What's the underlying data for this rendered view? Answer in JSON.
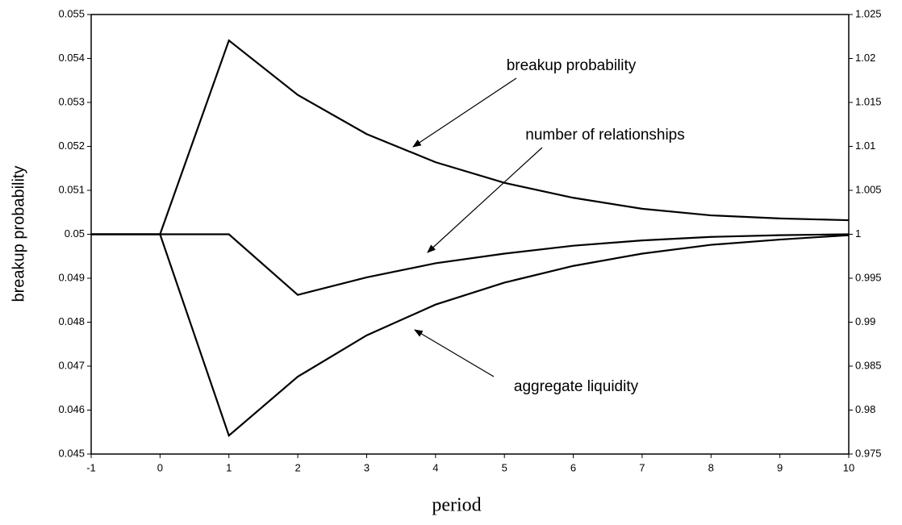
{
  "chart_data": {
    "type": "line",
    "x_label": "period",
    "y_label": "breakup probability",
    "x": [
      -1,
      0,
      1,
      2,
      3,
      4,
      5,
      6,
      7,
      8,
      9,
      10
    ],
    "xlim": [
      -1,
      10
    ],
    "xticks": [
      -1,
      0,
      1,
      2,
      3,
      4,
      5,
      6,
      7,
      8,
      9,
      10
    ],
    "ylim": [
      0.045,
      0.055
    ],
    "yticks": [
      0.045,
      0.046,
      0.047,
      0.048,
      0.049,
      0.05,
      0.051,
      0.052,
      0.053,
      0.054,
      0.055
    ],
    "y2lim": [
      0.975,
      1.025
    ],
    "y2ticks": [
      0.975,
      0.98,
      0.985,
      0.99,
      0.995,
      1,
      1.005,
      1.01,
      1.015,
      1.02,
      1.025
    ],
    "series": [
      {
        "name": "breakup probability",
        "color": "#000000",
        "values": [
          0.05,
          0.05,
          0.05441,
          0.05317,
          0.05228,
          0.05164,
          0.05117,
          0.05083,
          0.05058,
          0.05043,
          0.05036,
          0.05032
        ]
      },
      {
        "name": "number of relationships",
        "color": "#000000",
        "axis": "y2",
        "values": [
          1,
          1,
          1,
          0.9931,
          0.9951,
          0.9967,
          0.9978,
          0.9987,
          0.9993,
          0.9997,
          0.9999,
          1.0
        ]
      },
      {
        "name": "aggregate liquidity",
        "color": "#000000",
        "axis": "y2",
        "values": [
          1,
          1,
          0.9771,
          0.9838,
          0.9885,
          0.992,
          0.9945,
          0.9964,
          0.9978,
          0.9988,
          0.9994,
          0.9999
        ]
      }
    ]
  }
}
